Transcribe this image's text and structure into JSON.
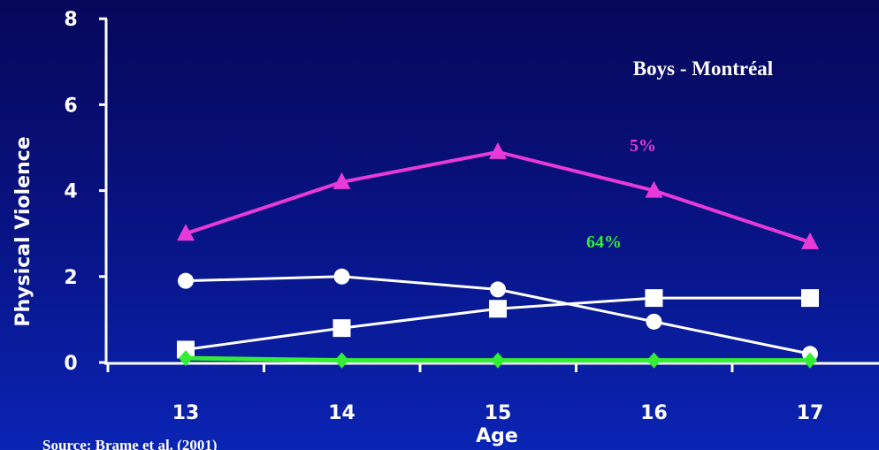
{
  "chart_data": {
    "type": "line",
    "title": "Boys - Montréal",
    "xlabel": "Age",
    "ylabel": "Physical Violence",
    "x": [
      13,
      14,
      15,
      16,
      17
    ],
    "xticks": [
      "13",
      "14",
      "15",
      "16",
      "17"
    ],
    "yticks": [
      "0",
      "2",
      "4",
      "6",
      "8"
    ],
    "xlim": [
      13,
      17
    ],
    "ylim": [
      0,
      8
    ],
    "grid": false,
    "series": [
      {
        "marker": "triangle",
        "color": "#e83ad8",
        "values": [
          3.0,
          4.2,
          4.9,
          4.0,
          2.8
        ]
      },
      {
        "marker": "circle",
        "color": "#ffffff",
        "values": [
          1.9,
          2.0,
          1.7,
          0.95,
          0.2
        ]
      },
      {
        "marker": "square",
        "color": "#ffffff",
        "values": [
          0.3,
          0.8,
          1.25,
          1.5,
          1.5
        ]
      },
      {
        "marker": "diamond",
        "color": "#33ee33",
        "values": [
          0.1,
          0.05,
          0.05,
          0.05,
          0.05
        ]
      }
    ],
    "annotations": [
      {
        "text": "5%",
        "color": "#e83ad8"
      },
      {
        "text": "64%",
        "color": "#33ee33"
      }
    ]
  },
  "source": "Source: Brame et al. (2001)"
}
